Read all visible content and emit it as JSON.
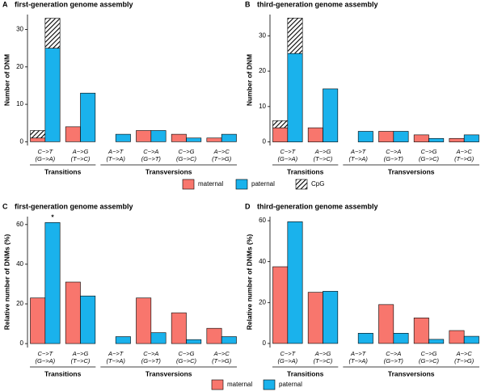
{
  "chart_data": [
    {
      "type": "bar",
      "panel": "A",
      "title": "first-generation genome assembly",
      "y_label": "Number of DNM",
      "categories": [
        "C−>T",
        "A−>G",
        "A−>T",
        "C−>A",
        "C−>G",
        "A−>C"
      ],
      "categories_sub": [
        "(G−>A)",
        "(T−>C)",
        "(T−>A)",
        "(G−>T)",
        "(G−>C)",
        "(T−>G)"
      ],
      "groups": [
        "Transitions",
        "Transversions"
      ],
      "series": [
        {
          "name": "maternal",
          "color": "#f8766d",
          "values": [
            1,
            4,
            0,
            3,
            2,
            1
          ]
        },
        {
          "name": "paternal",
          "color": "#1ab2ec",
          "values": [
            25,
            13,
            2,
            3,
            1,
            2
          ]
        }
      ],
      "cpg": {
        "name": "CpG",
        "maternal": [
          2,
          null,
          null,
          null,
          null,
          null
        ],
        "paternal": [
          8,
          null,
          null,
          null,
          null,
          null
        ]
      },
      "ylim": [
        -1,
        34
      ],
      "yticks": [
        0,
        10,
        20,
        30
      ]
    },
    {
      "type": "bar",
      "panel": "B",
      "title": "third-generation genome assembly",
      "y_label": "Number of DNM",
      "categories": [
        "C−>T",
        "A−>G",
        "A−>T",
        "C−>A",
        "C−>G",
        "A−>C"
      ],
      "categories_sub": [
        "(G−>A)",
        "(T−>C)",
        "(T−>A)",
        "(G−>T)",
        "(G−>C)",
        "(T−>G)"
      ],
      "groups": [
        "Transitions",
        "Transversions"
      ],
      "series": [
        {
          "color": "#f8766d",
          "values": [
            4,
            4,
            0,
            3,
            2,
            1
          ]
        },
        {
          "color": "#1ab2ec",
          "values": [
            25,
            15,
            3,
            3,
            1,
            2
          ]
        }
      ],
      "cpg": {
        "maternal": [
          2,
          null,
          null,
          null,
          null,
          null
        ],
        "paternal": [
          10,
          null,
          null,
          null,
          null,
          null
        ]
      },
      "ylim": [
        -1,
        36
      ],
      "yticks": [
        0,
        10,
        20,
        30
      ]
    },
    {
      "type": "bar",
      "panel": "C",
      "title": "first-generation genome assembly",
      "y_label": "Relative number of DNMs (%)",
      "categories": [
        "C−>T",
        "A−>G",
        "A−>T",
        "C−>A",
        "C−>G",
        "A−>C"
      ],
      "categories_sub": [
        "(G−>A)",
        "(T−>C)",
        "(T−>A)",
        "(G−>T)",
        "(G−>C)",
        "(T−>G)"
      ],
      "groups": [
        "Transitions",
        "Transversions"
      ],
      "series": [
        {
          "name": "maternal",
          "color": "#f8766d",
          "values": [
            23,
            31,
            0,
            23,
            15.5,
            7.7
          ]
        },
        {
          "name": "paternal",
          "color": "#1ab2ec",
          "values": [
            61,
            24,
            3.5,
            5.5,
            2,
            3.5
          ]
        }
      ],
      "annotation": "*",
      "ylim": [
        -2,
        64
      ],
      "yticks": [
        0,
        20,
        40,
        60
      ]
    },
    {
      "type": "bar",
      "panel": "D",
      "title": "third-generation genome assembly",
      "y_label": "Relative number of DNMs (%)",
      "categories": [
        "C−>T",
        "A−>G",
        "A−>T",
        "C−>A",
        "C−>G",
        "A−>C"
      ],
      "categories_sub": [
        "(G−>A)",
        "(T−>C)",
        "(T−>A)",
        "(G−>T)",
        "(G−>C)",
        "(T−>G)"
      ],
      "groups": [
        "Transitions",
        "Transversions"
      ],
      "series": [
        {
          "color": "#f8766d",
          "values": [
            37.5,
            25,
            0,
            19,
            12.5,
            6.3
          ]
        },
        {
          "color": "#1ab2ec",
          "values": [
            59.5,
            25.5,
            5,
            5,
            2,
            3.5
          ]
        }
      ],
      "ylim": [
        -2,
        62
      ],
      "yticks": [
        0,
        20,
        40,
        60
      ]
    }
  ]
}
